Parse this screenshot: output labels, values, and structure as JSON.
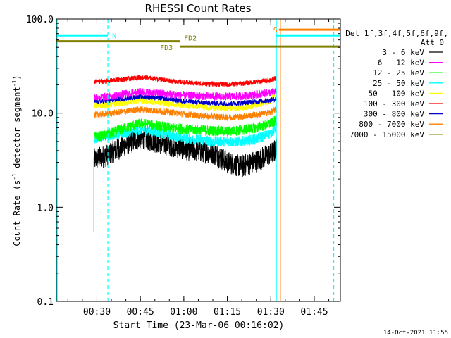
{
  "chart_data": {
    "type": "line",
    "title": "RHESSI Count Rates",
    "xlabel": "Start Time (23-Mar-06 00:16:02)",
    "ylabel_main": "Count Rate (s",
    "ylabel_sup1": "-1",
    "ylabel_mid": " detector segment",
    "ylabel_sup2": "-1",
    "ylabel_end": ")",
    "y_scale": "log",
    "ylim": [
      0.1,
      100
    ],
    "xlim_minutes": [
      16.03,
      114
    ],
    "x_ticks": [
      {
        "label": "00:30",
        "minutes": 30
      },
      {
        "label": "00:45",
        "minutes": 45
      },
      {
        "label": "01:00",
        "minutes": 60
      },
      {
        "label": "01:15",
        "minutes": 75
      },
      {
        "label": "01:30",
        "minutes": 90
      },
      {
        "label": "01:45",
        "minutes": 105
      }
    ],
    "y_ticks": [
      {
        "label": "0.1",
        "value": 0.1
      },
      {
        "label": "1.0",
        "value": 1
      },
      {
        "label": "10.0",
        "value": 10
      },
      {
        "label": "100.0",
        "value": 100
      }
    ],
    "data_span_minutes": [
      29.0,
      92.3
    ],
    "legend": {
      "header": [
        "Det 1f,3f,4f,5f,6f,9f,",
        "Att 0"
      ],
      "placement": "right"
    },
    "series": [
      {
        "name": "3 - 6 keV",
        "color": "#000000",
        "x": [
          29,
          33,
          40,
          45,
          50,
          55,
          60,
          65,
          70,
          75,
          80,
          85,
          90,
          92
        ],
        "values": [
          3.2,
          3.5,
          4.6,
          5.5,
          5.0,
          4.6,
          4.2,
          4.0,
          3.8,
          3.0,
          2.7,
          3.1,
          3.7,
          4.1
        ]
      },
      {
        "name": "6 - 12 keV",
        "color": "#ff00ff",
        "x": [
          29,
          33,
          40,
          45,
          50,
          55,
          60,
          65,
          70,
          75,
          80,
          85,
          90,
          92
        ],
        "values": [
          14.8,
          14.8,
          16.0,
          16.8,
          16.4,
          15.9,
          15.5,
          15.2,
          15.1,
          15.0,
          15.2,
          15.8,
          16.5,
          17.2
        ]
      },
      {
        "name": "12 - 25 keV",
        "color": "#00ff00",
        "x": [
          29,
          33,
          40,
          45,
          50,
          55,
          60,
          65,
          70,
          75,
          80,
          85,
          90,
          92
        ],
        "values": [
          5.6,
          5.8,
          7.0,
          7.8,
          7.4,
          7.0,
          6.8,
          6.6,
          6.5,
          6.4,
          6.6,
          7.0,
          7.8,
          8.4
        ]
      },
      {
        "name": "25 - 50 keV",
        "color": "#00ffff",
        "x": [
          29,
          33,
          40,
          45,
          50,
          55,
          60,
          65,
          70,
          75,
          80,
          85,
          90,
          92
        ],
        "values": [
          5.4,
          5.8,
          6.1,
          6.7,
          6.3,
          5.8,
          5.4,
          5.2,
          5.0,
          5.0,
          5.0,
          5.3,
          6.1,
          7.2
        ]
      },
      {
        "name": "50 - 100 keV",
        "color": "#ffff00",
        "x": [
          29,
          33,
          40,
          45,
          50,
          55,
          60,
          65,
          70,
          75,
          80,
          85,
          90,
          92
        ],
        "values": [
          12.0,
          12.2,
          13.0,
          13.8,
          13.2,
          12.6,
          12.2,
          11.8,
          11.5,
          11.3,
          11.5,
          12.1,
          13.5,
          17.5
        ]
      },
      {
        "name": "100 - 300 keV",
        "color": "#ff0000",
        "x": [
          29,
          33,
          40,
          45,
          50,
          55,
          60,
          65,
          70,
          75,
          80,
          85,
          90,
          92
        ],
        "values": [
          21.5,
          21.8,
          23.0,
          24.0,
          23.3,
          22.2,
          21.2,
          20.6,
          20.4,
          20.2,
          20.6,
          21.4,
          22.5,
          23.6
        ]
      },
      {
        "name": "300 - 800 keV",
        "color": "#0000cc",
        "x": [
          29,
          33,
          40,
          45,
          50,
          55,
          60,
          65,
          70,
          75,
          80,
          85,
          90,
          92
        ],
        "values": [
          13.2,
          13.4,
          14.4,
          15.0,
          14.6,
          14.0,
          13.4,
          13.0,
          12.8,
          12.6,
          12.8,
          13.2,
          13.8,
          14.2
        ]
      },
      {
        "name": "800 - 7000 keV",
        "color": "#ff8000",
        "x": [
          29,
          33,
          40,
          45,
          50,
          55,
          60,
          65,
          70,
          75,
          80,
          85,
          90,
          92
        ],
        "values": [
          9.6,
          9.8,
          10.4,
          11.0,
          10.6,
          10.2,
          9.8,
          9.4,
          9.2,
          9.0,
          9.2,
          9.6,
          10.2,
          11.0
        ]
      },
      {
        "name": "7000 - 15000 keV",
        "color": "#808000",
        "x": [
          29,
          92
        ],
        "values": [
          null,
          null
        ]
      }
    ],
    "flags": {
      "night_color": "#00ffff",
      "saa_color": "#ff8000",
      "decimation_color": "#808000",
      "bars": [
        {
          "name": "N",
          "color": "#00ffff",
          "start_minutes": 16.03,
          "end_minutes": 33.8,
          "value": 67
        },
        {
          "name": "N",
          "color": "#00ffff",
          "start_minutes": 91.9,
          "end_minutes": 114,
          "value": 67
        },
        {
          "name": "S",
          "color": "#ff8000",
          "start_minutes": 92.8,
          "end_minutes": 114,
          "value": 77
        },
        {
          "name": "FD2",
          "color": "#808000",
          "start_minutes": 16.03,
          "end_minutes": 58.6,
          "value": 58
        },
        {
          "name": "FD3",
          "color": "#808000",
          "start_minutes": 58.6,
          "end_minutes": 114,
          "value": 51
        }
      ],
      "vlines": [
        {
          "color": "#00ffff",
          "minutes": 33.8,
          "dashed": true
        },
        {
          "color": "#00ffff",
          "minutes": 111.7,
          "dashed": true
        },
        {
          "color": "#00ffff",
          "minutes": 91.9,
          "dashed": false
        },
        {
          "color": "#ff8000",
          "minutes": 93.3,
          "dashed": false
        },
        {
          "color": "#00ffff",
          "minutes": 16.3,
          "dashed": false
        }
      ]
    },
    "footer_date": "14-Oct-2021 11:55"
  }
}
